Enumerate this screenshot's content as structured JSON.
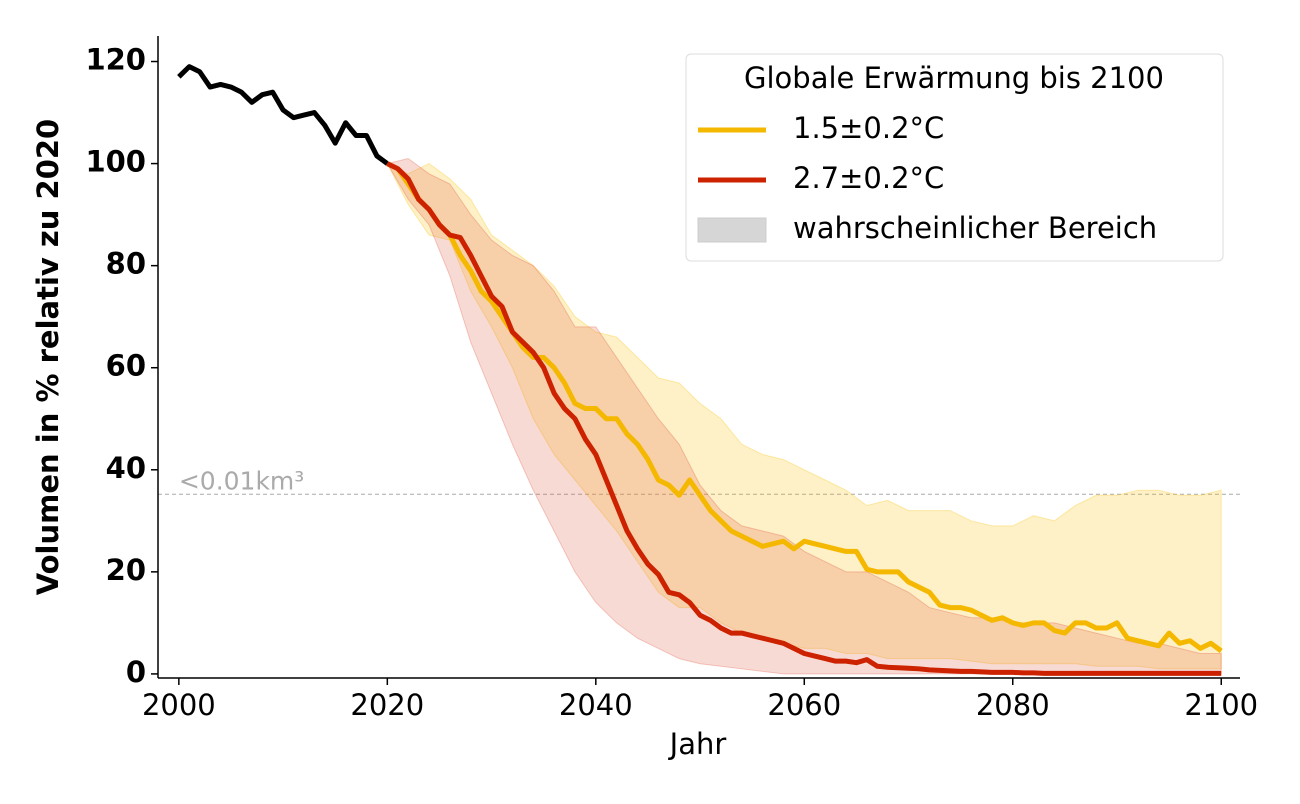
{
  "chart_data": {
    "type": "line",
    "x_label": "Jahr",
    "y_label": "Volumen in % relativ zu 2020",
    "legend_title": "Globale Erwärmung bis 2100",
    "legend_position": "upper right",
    "band_label": "wahrscheinlicher Bereich",
    "band_legend_color": "#d6d6d6",
    "xlim": [
      1998,
      2101.8
    ],
    "ylim": [
      -0.8,
      125
    ],
    "xticks": [
      2000,
      2020,
      2040,
      2060,
      2080,
      2100
    ],
    "yticks": [
      0,
      20,
      40,
      60,
      80,
      100,
      120
    ],
    "reference_line": {
      "value": 35.2,
      "label": "<0.01km³",
      "color": "#aaaaaa"
    },
    "history": {
      "color": "#000000",
      "x": [
        2000,
        2001,
        2002,
        2003,
        2004,
        2005,
        2006,
        2007,
        2008,
        2009,
        2010,
        2011,
        2012,
        2013,
        2014,
        2015,
        2016,
        2017,
        2018,
        2019,
        2020
      ],
      "values": [
        117,
        119,
        118,
        115,
        115.5,
        115,
        114,
        112,
        113.5,
        114,
        110.5,
        109,
        109.5,
        110,
        107.5,
        104,
        108,
        105.5,
        105.5,
        101.5,
        100
      ]
    },
    "x": [
      2020,
      2021,
      2022,
      2023,
      2024,
      2025,
      2026,
      2027,
      2028,
      2029,
      2030,
      2031,
      2032,
      2033,
      2034,
      2035,
      2036,
      2037,
      2038,
      2039,
      2040,
      2041,
      2042,
      2043,
      2044,
      2045,
      2046,
      2047,
      2048,
      2049,
      2050,
      2051,
      2052,
      2053,
      2054,
      2055,
      2056,
      2057,
      2058,
      2059,
      2060,
      2061,
      2062,
      2063,
      2064,
      2065,
      2066,
      2067,
      2068,
      2069,
      2070,
      2071,
      2072,
      2073,
      2074,
      2075,
      2076,
      2077,
      2078,
      2079,
      2080,
      2081,
      2082,
      2083,
      2084,
      2085,
      2086,
      2087,
      2088,
      2089,
      2090,
      2091,
      2092,
      2093,
      2094,
      2095,
      2096,
      2097,
      2098,
      2099,
      2100
    ],
    "band_x": [
      2020,
      2022,
      2024,
      2026,
      2028,
      2030,
      2032,
      2034,
      2036,
      2038,
      2040,
      2042,
      2044,
      2046,
      2048,
      2050,
      2052,
      2054,
      2056,
      2058,
      2060,
      2062,
      2064,
      2066,
      2068,
      2070,
      2072,
      2074,
      2076,
      2078,
      2080,
      2082,
      2084,
      2086,
      2088,
      2090,
      2092,
      2094,
      2096,
      2098,
      2100
    ],
    "series": [
      {
        "name": "1.5±0.2°C",
        "color": "#f5b800",
        "band_color": "#f9c000",
        "values": [
          100,
          99,
          96,
          93,
          91,
          88,
          86,
          82,
          79,
          75,
          73,
          70,
          67,
          64,
          62,
          62,
          60,
          57,
          53,
          52,
          52,
          50,
          50,
          47,
          45,
          42,
          38,
          37,
          35,
          38,
          35,
          32,
          30,
          28,
          27,
          26,
          25,
          25.5,
          26,
          24.5,
          26,
          25.5,
          25,
          24.5,
          24,
          24,
          20.5,
          20,
          20,
          20,
          18,
          17,
          16,
          13.5,
          13,
          13,
          12.5,
          11.5,
          10.5,
          11,
          10,
          9.5,
          10,
          10,
          8.5,
          8,
          10,
          10,
          9,
          9,
          10,
          7,
          6.5,
          6,
          5.5,
          8,
          6,
          6.5,
          5,
          6,
          4.5
        ],
        "band_upper": [
          100,
          98,
          100,
          97,
          93,
          86,
          83,
          80,
          76,
          70,
          67,
          66,
          62,
          58,
          57,
          53,
          50,
          45,
          43,
          42,
          40,
          38,
          36,
          33,
          34,
          32,
          32,
          32,
          30,
          29,
          29,
          31,
          30,
          33,
          35,
          35,
          36,
          36,
          35,
          35,
          36
        ],
        "band_lower": [
          100,
          92,
          86,
          85,
          75,
          68,
          60,
          50,
          43,
          38,
          33,
          28,
          22,
          16,
          13,
          13,
          10,
          8,
          7,
          6,
          5,
          5,
          4,
          4,
          3,
          3,
          3,
          3,
          2.5,
          2,
          2,
          2,
          2,
          2,
          1.5,
          1.5,
          1.5,
          1,
          1,
          1,
          1
        ]
      },
      {
        "name": "2.7±0.2°C",
        "color": "#cc2200",
        "band_color": "#e0553f",
        "values": [
          100,
          99,
          97,
          93,
          91,
          88,
          86,
          85.5,
          82,
          78,
          74,
          72,
          67,
          65,
          63,
          60,
          55,
          52,
          50,
          46,
          43,
          38,
          33,
          28,
          24.5,
          21.5,
          19.5,
          16,
          15.5,
          14,
          11.5,
          10.5,
          9,
          8,
          8,
          7.5,
          7,
          6.5,
          6,
          5,
          4,
          3.5,
          3,
          2.5,
          2.5,
          2.2,
          2.8,
          1.5,
          1.3,
          1.2,
          1.1,
          1,
          0.8,
          0.7,
          0.6,
          0.5,
          0.5,
          0.4,
          0.3,
          0.3,
          0.3,
          0.2,
          0.2,
          0.1,
          0.1,
          0.1,
          0.1,
          0.1,
          0.1,
          0.1,
          0.1,
          0.1,
          0.1,
          0.1,
          0.1,
          0.1,
          0.1,
          0.1,
          0.1,
          0.1,
          0.1
        ],
        "band_upper": [
          100,
          101,
          98,
          96,
          90,
          85,
          82,
          80,
          75,
          68,
          68,
          62,
          56,
          50,
          45,
          37,
          32,
          29,
          28,
          27,
          24,
          22,
          20,
          20,
          18,
          16,
          13,
          12,
          11,
          11,
          10,
          10,
          10,
          9,
          8,
          7,
          6,
          6,
          5,
          4,
          4
        ],
        "band_lower": [
          100,
          93,
          88,
          78,
          65,
          55,
          45,
          36,
          28,
          20,
          14,
          10,
          7,
          5,
          3,
          2,
          1.5,
          1,
          0.5,
          0,
          0,
          0,
          0,
          0,
          0,
          0,
          0,
          0,
          0,
          0,
          0,
          0,
          0,
          0,
          0,
          0,
          0,
          0,
          0,
          0,
          0
        ]
      }
    ]
  }
}
